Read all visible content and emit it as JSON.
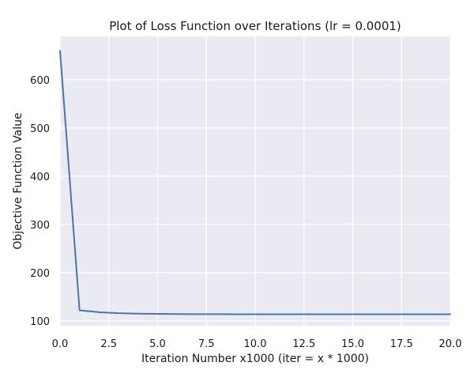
{
  "chart_data": {
    "type": "line",
    "title": "Plot of Loss Function over Iterations (lr = 0.0001)",
    "xlabel": "Iteration Number x1000 (iter = x * 1000)",
    "ylabel": "Objective Function Value",
    "xlim": [
      0,
      20
    ],
    "ylim": [
      90,
      690
    ],
    "xticks": [
      0.0,
      2.5,
      5.0,
      7.5,
      10.0,
      12.5,
      15.0,
      17.5,
      20.0
    ],
    "xtick_labels": [
      "0.0",
      "2.5",
      "5.0",
      "7.5",
      "10.0",
      "12.5",
      "15.0",
      "17.5",
      "20.0"
    ],
    "yticks": [
      100,
      200,
      300,
      400,
      500,
      600
    ],
    "ytick_labels": [
      "100",
      "200",
      "300",
      "400",
      "500",
      "600"
    ],
    "grid": true,
    "background": "#eaeaf2",
    "series": [
      {
        "color": "#4c72b0",
        "x": [
          0,
          1,
          2,
          3,
          4,
          5,
          6,
          7,
          8,
          9,
          10,
          11,
          12,
          13,
          14,
          15,
          16,
          17,
          18,
          19,
          20
        ],
        "y": [
          660,
          122,
          118,
          116,
          115,
          114.5,
          114.2,
          114,
          113.9,
          113.8,
          113.8,
          113.7,
          113.7,
          113.7,
          113.7,
          113.7,
          113.7,
          113.7,
          113.7,
          113.7,
          113.7
        ]
      }
    ]
  }
}
